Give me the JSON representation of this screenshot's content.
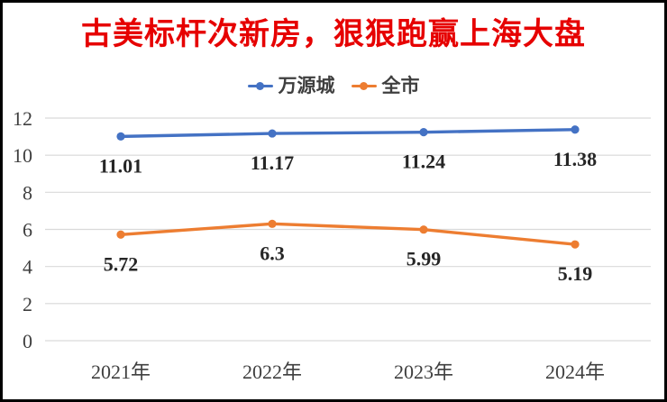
{
  "frame": {
    "background": "#ffffff",
    "border_color": "#000000"
  },
  "header": {
    "title": "古美标杆次新房，狠狠跑赢上海大盘",
    "title_color": "#e60000"
  },
  "legend": {
    "items": [
      {
        "label": "万源城",
        "color": "#4472c4"
      },
      {
        "label": "全市",
        "color": "#ed7d31"
      }
    ]
  },
  "chart_data": {
    "type": "line",
    "title": "古美标杆次新房，狠狠跑赢上海大盘",
    "categories": [
      "2021年",
      "2022年",
      "2023年",
      "2024年"
    ],
    "series": [
      {
        "name": "万源城",
        "color": "#4472c4",
        "marker": "circle",
        "values": [
          11.01,
          11.17,
          11.24,
          11.38
        ],
        "labels": [
          "11.01",
          "11.17",
          "11.24",
          "11.38"
        ]
      },
      {
        "name": "全市",
        "color": "#ed7d31",
        "marker": "circle",
        "values": [
          5.72,
          6.3,
          5.99,
          5.19
        ],
        "labels": [
          "5.72",
          "6.3",
          "5.99",
          "5.19"
        ]
      }
    ],
    "xlabel": "",
    "ylabel": "",
    "ylim": [
      0,
      12
    ],
    "ytick_step": 2,
    "yticks": [
      0,
      2,
      4,
      6,
      8,
      10,
      12
    ],
    "grid": true,
    "gridline_color": "#d9d9d9",
    "axis_text_color": "#3f3f3f",
    "data_label_color": "#262626",
    "legend_position": "top"
  }
}
